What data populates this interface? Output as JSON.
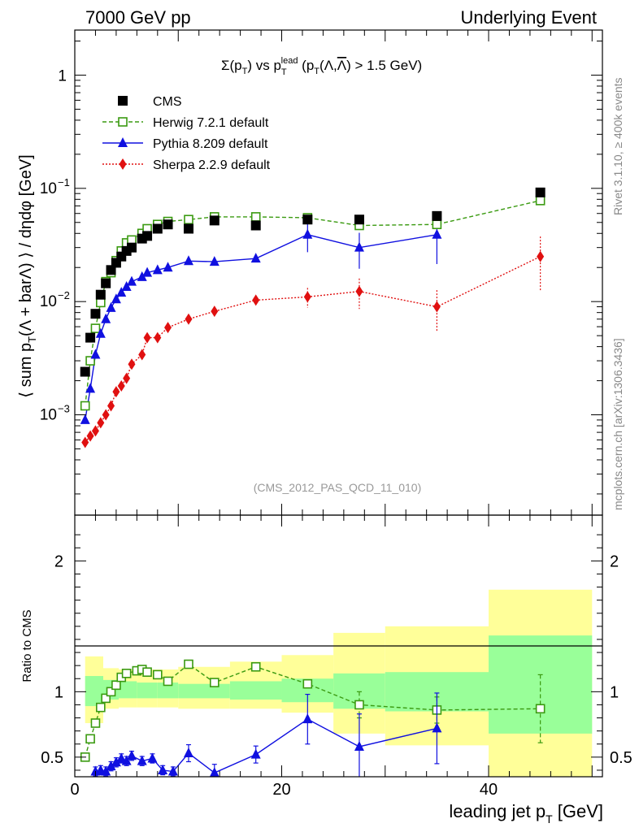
{
  "header": {
    "left": "7000 GeV pp",
    "right": "Underlying Event"
  },
  "side": {
    "rivet": "Rivet 3.1.10, ≥ 400k events",
    "mcplots": "mcplots.cern.ch [arXiv:1306.3436]"
  },
  "plot_title": "Σ(p_T) vs p_T^lead (p_T(Λ,Λ̄) > 1.5 GeV)",
  "analysis_id": "(CMS_2012_PAS_QCD_11_010)",
  "chart_data": [
    {
      "type": "scatter",
      "panel": "main",
      "ylabel": "⟨ sum p_T(Λ + barΛ) ⟩ / dηdφ [GeV]",
      "yscale": "log",
      "xlim": [
        0,
        51
      ],
      "ylim": [
        0.00013,
        2.5
      ],
      "y_tick_labels": [
        "10^-3",
        "10^-2",
        "10^-1",
        "1"
      ],
      "legend_position": "top-left",
      "series": [
        {
          "name": "CMS",
          "color": "#000000",
          "marker": "square-filled",
          "x": [
            1.0,
            1.5,
            2.0,
            2.5,
            3.0,
            3.5,
            4.0,
            4.5,
            5.0,
            5.5,
            6.5,
            7.0,
            8.0,
            9.0,
            11.0,
            13.5,
            17.5,
            22.5,
            27.5,
            35.0,
            45.0
          ],
          "y": [
            0.0024,
            0.0048,
            0.0078,
            0.0115,
            0.0145,
            0.019,
            0.022,
            0.025,
            0.028,
            0.03,
            0.036,
            0.038,
            0.044,
            0.048,
            0.044,
            0.052,
            0.047,
            0.053,
            0.053,
            0.057,
            0.092
          ]
        },
        {
          "name": "Herwig 7.2.1 default",
          "color": "#3a9a10",
          "marker": "square-open",
          "line": "dashed",
          "x": [
            1.0,
            1.5,
            2.0,
            2.5,
            3.0,
            3.5,
            4.0,
            4.5,
            5.0,
            5.5,
            6.5,
            7.0,
            8.0,
            9.0,
            11.0,
            13.5,
            17.5,
            22.5,
            27.5,
            35.0,
            45.0
          ],
          "y": [
            0.0012,
            0.003,
            0.0058,
            0.0098,
            0.015,
            0.018,
            0.023,
            0.028,
            0.033,
            0.035,
            0.04,
            0.044,
            0.048,
            0.051,
            0.053,
            0.056,
            0.056,
            0.055,
            0.047,
            0.048,
            0.078
          ]
        },
        {
          "name": "Pythia 8.209 default",
          "color": "#1010e0",
          "marker": "triangle-filled",
          "line": "solid",
          "x": [
            1.0,
            1.5,
            2.0,
            2.5,
            3.0,
            3.5,
            4.0,
            4.5,
            5.0,
            5.5,
            6.5,
            7.0,
            8.0,
            9.0,
            11.0,
            13.5,
            17.5,
            22.5,
            27.5,
            35.0
          ],
          "y": [
            0.0009,
            0.0017,
            0.0034,
            0.0052,
            0.007,
            0.0088,
            0.0105,
            0.012,
            0.0135,
            0.015,
            0.0165,
            0.018,
            0.019,
            0.02,
            0.0228,
            0.0225,
            0.024,
            0.039,
            0.03,
            0.039
          ]
        },
        {
          "name": "Sherpa 2.2.9 default",
          "color": "#e01010",
          "marker": "diamond-filled",
          "line": "dotted",
          "x": [
            1.0,
            1.5,
            2.0,
            2.5,
            3.0,
            3.5,
            4.0,
            4.5,
            5.0,
            5.5,
            6.5,
            7.0,
            8.0,
            9.0,
            11.0,
            13.5,
            17.5,
            22.5,
            27.5,
            35.0,
            45.0
          ],
          "y": [
            0.00057,
            0.00065,
            0.00072,
            0.00085,
            0.001,
            0.0012,
            0.0016,
            0.0018,
            0.0021,
            0.0028,
            0.0034,
            0.0048,
            0.0048,
            0.0059,
            0.007,
            0.0082,
            0.0103,
            0.011,
            0.0123,
            0.009,
            0.025
          ]
        }
      ]
    },
    {
      "type": "scatter",
      "panel": "ratio",
      "ylabel": "Ratio to CMS",
      "xlabel": "leading jet p_T [GeV]",
      "xlim": [
        0,
        51
      ],
      "ylim": [
        0.35,
        2.35
      ],
      "x_ticks": [
        0,
        20,
        40
      ],
      "y_ticks": [
        0.5,
        1,
        2
      ],
      "reference_line": 1,
      "bands": {
        "edges": [
          1.0,
          2.75,
          4.25,
          6.0,
          8.0,
          10.0,
          15.0,
          20.0,
          25.0,
          30.0,
          40.0,
          50.0
        ],
        "green_low": [
          0.89,
          0.94,
          0.95,
          0.95,
          0.95,
          0.95,
          0.94,
          0.92,
          0.87,
          0.85,
          0.68
        ],
        "green_high": [
          1.12,
          1.09,
          1.08,
          1.07,
          1.07,
          1.06,
          1.08,
          1.1,
          1.14,
          1.15,
          1.43
        ],
        "yellow_low": [
          0.76,
          0.87,
          0.88,
          0.88,
          0.88,
          0.87,
          0.87,
          0.84,
          0.68,
          0.59,
          0.32
        ],
        "yellow_high": [
          1.27,
          1.18,
          1.17,
          1.17,
          1.17,
          1.19,
          1.23,
          1.28,
          1.45,
          1.5,
          1.78
        ]
      },
      "series": [
        {
          "name": "Herwig 7.2.1 default",
          "x": [
            1.0,
            1.5,
            2.0,
            2.5,
            3.0,
            3.5,
            4.0,
            4.5,
            5.0,
            6.0,
            6.5,
            7.0,
            8.0,
            9.0,
            11.0,
            13.5,
            17.5,
            22.5,
            27.5,
            35.0,
            45.0
          ],
          "y": [
            0.5,
            0.64,
            0.76,
            0.88,
            0.95,
            1.0,
            1.05,
            1.11,
            1.14,
            1.16,
            1.17,
            1.15,
            1.13,
            1.08,
            1.21,
            1.07,
            1.19,
            1.06,
            0.9,
            0.86,
            0.87
          ]
        },
        {
          "name": "Pythia 8.209 default",
          "x": [
            2.0,
            2.5,
            3.0,
            3.5,
            4.0,
            4.5,
            5.0,
            5.5,
            6.5,
            7.5,
            8.5,
            9.5,
            11.0,
            13.5,
            17.5,
            22.5,
            27.5,
            35.0
          ],
          "y": [
            0.39,
            0.4,
            0.39,
            0.43,
            0.46,
            0.49,
            0.47,
            0.51,
            0.47,
            0.49,
            0.4,
            0.39,
            0.53,
            0.38,
            0.52,
            0.79,
            0.58,
            0.72
          ]
        }
      ]
    }
  ]
}
